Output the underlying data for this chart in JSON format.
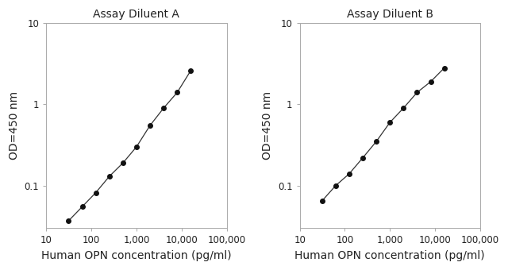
{
  "panel_A": {
    "title": "Assay Diluent A",
    "x": [
      31.25,
      62.5,
      125,
      250,
      500,
      1000,
      2000,
      4000,
      8000,
      16000
    ],
    "y": [
      0.037,
      0.055,
      0.082,
      0.13,
      0.19,
      0.3,
      0.55,
      0.9,
      1.4,
      2.6
    ]
  },
  "panel_B": {
    "title": "Assay Diluent B",
    "x": [
      31.25,
      62.5,
      125,
      250,
      500,
      1000,
      2000,
      4000,
      8000,
      16000
    ],
    "y": [
      0.065,
      0.1,
      0.14,
      0.22,
      0.35,
      0.6,
      0.9,
      1.4,
      1.9,
      2.8
    ]
  },
  "xlabel": "Human OPN concentration (pg/ml)",
  "ylabel": "OD=450 nm",
  "xlim": [
    10,
    100000
  ],
  "ylim": [
    0.03,
    10
  ],
  "xticks": [
    10,
    100,
    1000,
    10000,
    100000
  ],
  "xticklabels": [
    "10",
    "100",
    "1,000",
    "10,000",
    "100,000"
  ],
  "yticks": [
    0.1,
    1,
    10
  ],
  "yticklabels": [
    "0.1",
    "1",
    "10"
  ],
  "line_color": "#333333",
  "marker_color": "#111111",
  "marker_size": 4,
  "line_width": 0.9,
  "title_fontsize": 10,
  "label_fontsize": 10,
  "tick_fontsize": 8.5,
  "bg_color": "#ffffff"
}
